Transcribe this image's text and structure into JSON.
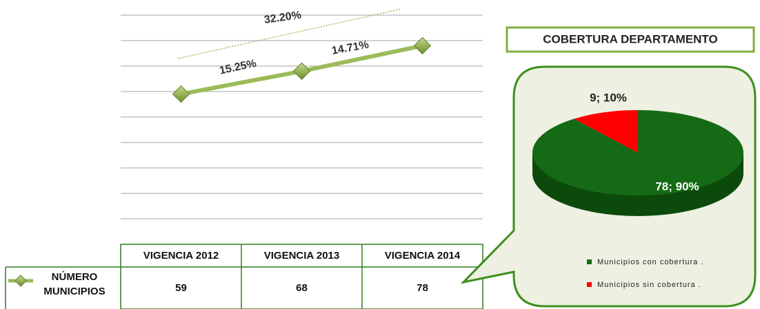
{
  "chart_data": [
    {
      "type": "line",
      "categories": [
        "VIGENCIA 2012",
        "VIGENCIA 2013",
        "VIGENCIA 2014"
      ],
      "series": [
        {
          "name": "NÚMERO MUNICIPIOS",
          "color": "#9bbb59",
          "values": [
            59,
            68,
            78
          ]
        }
      ],
      "annotations": [
        "15.25%",
        "14.71%",
        "32.20%"
      ],
      "ylim": [
        10,
        90
      ],
      "yticks": [
        10,
        20,
        30,
        40,
        50,
        60,
        70,
        80,
        90
      ],
      "grid": true,
      "ytick_labels": false
    },
    {
      "type": "pie",
      "title": "COBERTURA DEPARTAMENTO",
      "categories": [
        "Municipios con cobertura .",
        "Municipios sin cobertura ."
      ],
      "values": [
        78,
        9
      ],
      "value_labels": [
        "78; 90%",
        "9; 10%"
      ],
      "colors": [
        "#156b15",
        "#ff0000"
      ]
    }
  ]
}
